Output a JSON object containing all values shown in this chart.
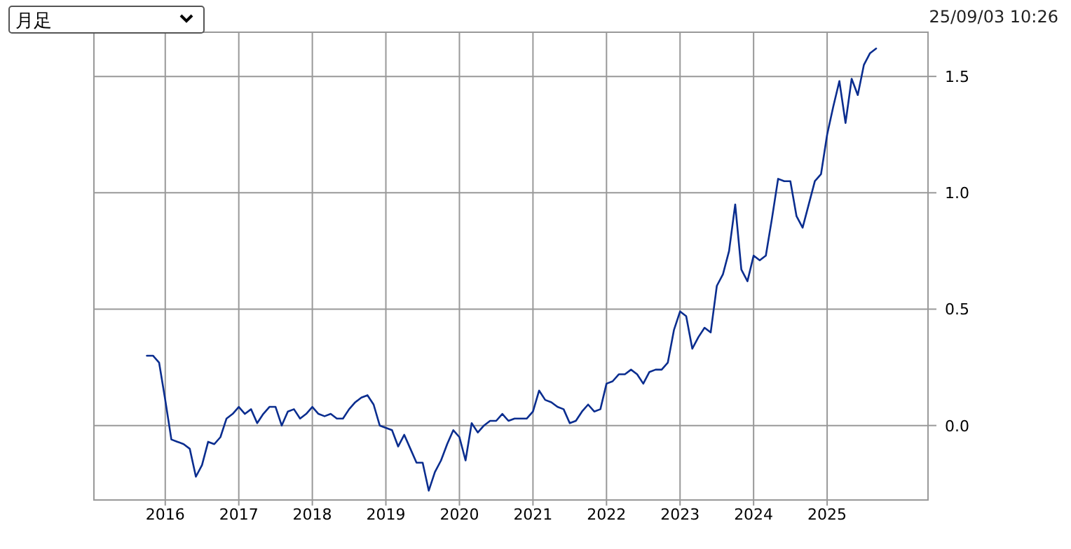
{
  "chart_data": {
    "type": "line",
    "annotations": [
      "月足",
      "25/09/03 10:26"
    ],
    "x": [
      "2015-10",
      "2015-11",
      "2015-12",
      "2016-01",
      "2016-02",
      "2016-03",
      "2016-04",
      "2016-05",
      "2016-06",
      "2016-07",
      "2016-08",
      "2016-09",
      "2016-10",
      "2016-11",
      "2016-12",
      "2017-01",
      "2017-02",
      "2017-03",
      "2017-04",
      "2017-05",
      "2017-06",
      "2017-07",
      "2017-08",
      "2017-09",
      "2017-10",
      "2017-11",
      "2017-12",
      "2018-01",
      "2018-02",
      "2018-03",
      "2018-04",
      "2018-05",
      "2018-06",
      "2018-07",
      "2018-08",
      "2018-09",
      "2018-10",
      "2018-11",
      "2018-12",
      "2019-01",
      "2019-02",
      "2019-03",
      "2019-04",
      "2019-05",
      "2019-06",
      "2019-07",
      "2019-08",
      "2019-09",
      "2019-10",
      "2019-11",
      "2019-12",
      "2020-01",
      "2020-02",
      "2020-03",
      "2020-04",
      "2020-05",
      "2020-06",
      "2020-07",
      "2020-08",
      "2020-09",
      "2020-10",
      "2020-11",
      "2020-12",
      "2021-01",
      "2021-02",
      "2021-03",
      "2021-04",
      "2021-05",
      "2021-06",
      "2021-07",
      "2021-08",
      "2021-09",
      "2021-10",
      "2021-11",
      "2021-12",
      "2022-01",
      "2022-02",
      "2022-03",
      "2022-04",
      "2022-05",
      "2022-06",
      "2022-07",
      "2022-08",
      "2022-09",
      "2022-10",
      "2022-11",
      "2022-12",
      "2023-01",
      "2023-02",
      "2023-03",
      "2023-04",
      "2023-05",
      "2023-06",
      "2023-07",
      "2023-08",
      "2023-09",
      "2023-10",
      "2023-11",
      "2023-12",
      "2024-01",
      "2024-02",
      "2024-03",
      "2024-04",
      "2024-05",
      "2024-06",
      "2024-07",
      "2024-08",
      "2024-09",
      "2024-10",
      "2024-11",
      "2024-12",
      "2025-01",
      "2025-02",
      "2025-03",
      "2025-04",
      "2025-05",
      "2025-06",
      "2025-07",
      "2025-08",
      "2025-09"
    ],
    "series": [
      {
        "color": "#0a2d8f",
        "values": [
          0.3,
          0.3,
          0.27,
          0.11,
          -0.06,
          -0.07,
          -0.08,
          -0.1,
          -0.22,
          -0.17,
          -0.07,
          -0.08,
          -0.05,
          0.03,
          0.05,
          0.08,
          0.05,
          0.07,
          0.01,
          0.05,
          0.08,
          0.08,
          0.0,
          0.06,
          0.07,
          0.03,
          0.05,
          0.08,
          0.05,
          0.04,
          0.05,
          0.03,
          0.03,
          0.07,
          0.1,
          0.12,
          0.13,
          0.09,
          0.0,
          -0.01,
          -0.02,
          -0.09,
          -0.04,
          -0.1,
          -0.16,
          -0.16,
          -0.28,
          -0.2,
          -0.15,
          -0.08,
          -0.02,
          -0.05,
          -0.15,
          0.01,
          -0.03,
          0.0,
          0.02,
          0.02,
          0.05,
          0.02,
          0.03,
          0.03,
          0.03,
          0.06,
          0.15,
          0.11,
          0.1,
          0.08,
          0.07,
          0.01,
          0.02,
          0.06,
          0.09,
          0.06,
          0.07,
          0.18,
          0.19,
          0.22,
          0.22,
          0.24,
          0.22,
          0.18,
          0.23,
          0.24,
          0.24,
          0.27,
          0.41,
          0.49,
          0.47,
          0.33,
          0.38,
          0.42,
          0.4,
          0.6,
          0.65,
          0.75,
          0.95,
          0.67,
          0.62,
          0.73,
          0.71,
          0.73,
          0.89,
          1.06,
          1.05,
          1.05,
          0.9,
          0.85,
          0.95,
          1.05,
          1.08,
          1.25,
          1.37,
          1.48,
          1.3,
          1.49,
          1.42,
          1.55,
          1.6,
          1.62
        ]
      }
    ],
    "xlim": [
      "2015-01-12",
      "2026-05-15"
    ],
    "xticks": [
      "2016",
      "2017",
      "2018",
      "2019",
      "2020",
      "2021",
      "2022",
      "2023",
      "2024",
      "2025"
    ],
    "ylim": [
      -0.32,
      1.69
    ],
    "yticks": [
      {
        "value": 0,
        "label": "0.0"
      },
      {
        "value": 0.5,
        "label": "0.5"
      },
      {
        "value": 1,
        "label": "1.0"
      },
      {
        "value": 1.5,
        "label": "1.5"
      }
    ],
    "grid": true,
    "marker": "none",
    "line_style": "solid"
  }
}
